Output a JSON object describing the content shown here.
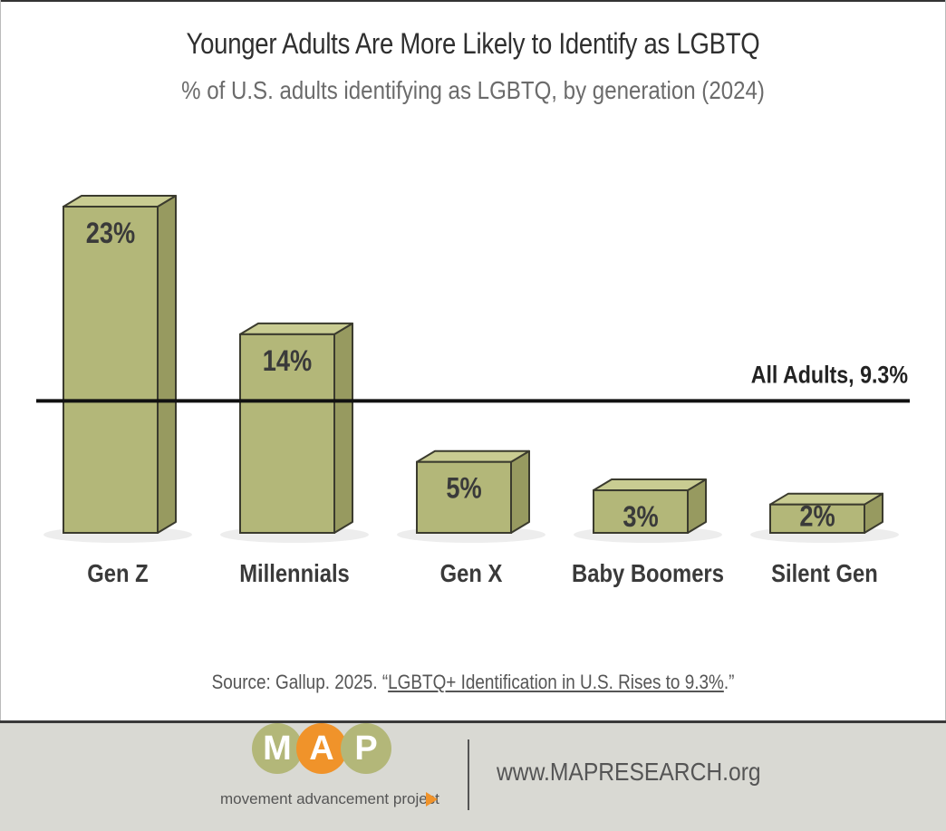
{
  "title": "Younger Adults Are More Likely to Identify as LGBTQ",
  "subtitle": "% of U.S. adults identifying as LGBTQ, by generation (2024)",
  "chart_data": {
    "type": "bar",
    "title": "Younger Adults Are More Likely to Identify as LGBTQ",
    "subtitle": "% of U.S. adults identifying as LGBTQ, by generation (2024)",
    "categories": [
      "Gen Z",
      "Millennials",
      "Gen X",
      "Baby Boomers",
      "Silent Gen"
    ],
    "values": [
      23,
      14,
      5,
      3,
      2
    ],
    "value_labels": [
      "23%",
      "14%",
      "5%",
      "3%",
      "2%"
    ],
    "reference_line": {
      "label": "All Adults, 9.3%",
      "value": 9.3
    },
    "ylim": [
      0,
      24
    ],
    "grid": false,
    "legend": "none",
    "bar_color": "#b3b779"
  },
  "source": {
    "prefix": "Source: Gallup. 2025. “",
    "link_text": "LGBTQ+ Identification in U.S. Rises to 9.3%",
    "suffix": ".”"
  },
  "footer": {
    "logo_letters": [
      "M",
      "A",
      "P"
    ],
    "logo_colors": [
      "#b3b779",
      "#f0932a",
      "#b3b779"
    ],
    "tagline": "movement advancement project",
    "url": "www.MAPRESEARCH.org"
  }
}
